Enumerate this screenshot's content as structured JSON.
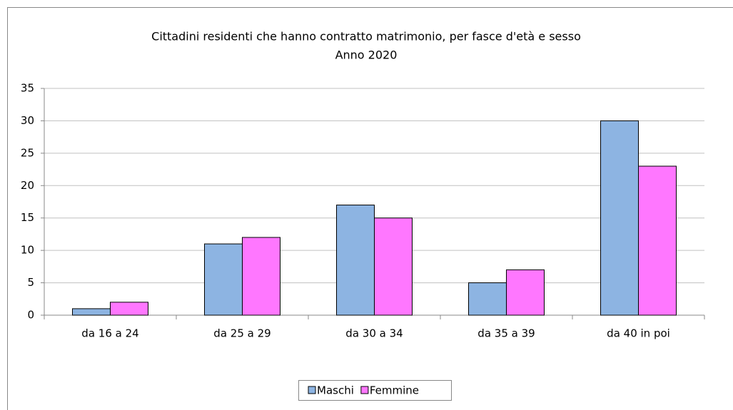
{
  "chart_data": {
    "type": "bar",
    "title": "Cittadini residenti che hanno contratto matrimonio, per fasce d'età e sesso",
    "subtitle": "Anno 2020",
    "categories": [
      "da 16 a 24",
      "da 25 a 29",
      "da 30 a 34",
      "da 35 a 39",
      "da 40 in poi"
    ],
    "series": [
      {
        "name": "Maschi",
        "color": "#8db4e2",
        "values": [
          1,
          11,
          17,
          5,
          30
        ]
      },
      {
        "name": "Femmine",
        "color": "#ff77ff",
        "values": [
          2,
          12,
          15,
          7,
          23
        ]
      }
    ],
    "ylim": [
      0,
      35
    ],
    "yticks": [
      0,
      5,
      10,
      15,
      20,
      25,
      30,
      35
    ],
    "grid": true,
    "legend": "bottom"
  }
}
